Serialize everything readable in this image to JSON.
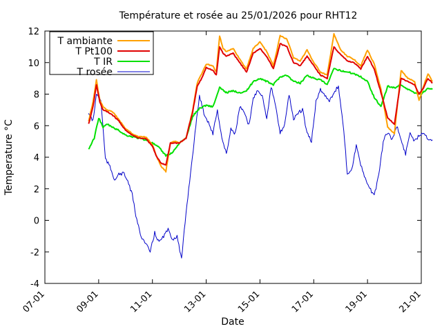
{
  "chart_data": {
    "type": "line",
    "title": "Température et rosée au 25/01/2026 pour RHT12",
    "xlabel": "Date",
    "ylabel": "Temperature °C",
    "xlim": [
      "2026-01-07",
      "2026-01-21"
    ],
    "ylim": [
      -4,
      12
    ],
    "x_ticks": [
      "07-01",
      "09-01",
      "11-01",
      "13-01",
      "15-01",
      "17-01",
      "19-01",
      "21-01"
    ],
    "y_ticks": [
      "-4",
      "-2",
      "0",
      "2",
      "4",
      "6",
      "8",
      "10",
      "12"
    ],
    "grid": false,
    "legend_position": "top-left",
    "series": [
      {
        "name": "T ambiante",
        "color": "#ffa000",
        "x": [
          "2026-01-08T15:00",
          "2026-01-08T19:00",
          "2026-01-08T22:00",
          "2026-01-09T01:00",
          "2026-01-09T04:00",
          "2026-01-09T07:00",
          "2026-01-09T12:00",
          "2026-01-09T18:00",
          "2026-01-10T00:00",
          "2026-01-10T06:00",
          "2026-01-10T12:00",
          "2026-01-10T18:00",
          "2026-01-11T00:00",
          "2026-01-11T04:00",
          "2026-01-11T08:00",
          "2026-01-11T12:00",
          "2026-01-11T16:00",
          "2026-01-11T20:00",
          "2026-01-12T00:00",
          "2026-01-12T06:00",
          "2026-01-12T12:00",
          "2026-01-12T16:00",
          "2026-01-12T20:00",
          "2026-01-13T00:00",
          "2026-01-13T06:00",
          "2026-01-13T09:00",
          "2026-01-13T12:00",
          "2026-01-13T15:00",
          "2026-01-13T18:00",
          "2026-01-14T00:00",
          "2026-01-14T06:00",
          "2026-01-14T12:00",
          "2026-01-14T18:00",
          "2026-01-15T00:00",
          "2026-01-15T06:00",
          "2026-01-15T12:00",
          "2026-01-15T18:00",
          "2026-01-16T00:00",
          "2026-01-16T06:00",
          "2026-01-16T12:00",
          "2026-01-16T18:00",
          "2026-01-17T00:00",
          "2026-01-17T06:00",
          "2026-01-17T12:00",
          "2026-01-17T18:00",
          "2026-01-18T00:00",
          "2026-01-18T06:00",
          "2026-01-18T12:00",
          "2026-01-18T18:00",
          "2026-01-19T00:00",
          "2026-01-19T06:00",
          "2026-01-19T12:00",
          "2026-01-19T18:00",
          "2026-01-20T00:00",
          "2026-01-20T06:00",
          "2026-01-20T12:00",
          "2026-01-20T18:00",
          "2026-01-20T22:00"
        ],
        "y": [
          6.3,
          7.5,
          8.9,
          7.6,
          7.2,
          7.0,
          6.9,
          6.4,
          5.8,
          5.5,
          5.3,
          5.3,
          4.8,
          4.0,
          3.4,
          3.1,
          4.9,
          5.0,
          4.9,
          5.2,
          7.0,
          8.7,
          9.3,
          9.9,
          9.8,
          9.4,
          11.7,
          10.9,
          10.7,
          10.9,
          10.2,
          9.6,
          10.9,
          11.3,
          10.7,
          9.8,
          11.7,
          11.5,
          10.3,
          10.1,
          10.8,
          10.0,
          9.4,
          9.2,
          11.8,
          10.8,
          10.4,
          10.2,
          9.8,
          10.8,
          9.9,
          8.3,
          5.9,
          5.5,
          9.5,
          9.0,
          8.8,
          7.6
        ],
        "extra_x": [
          "2026-01-21T02:00",
          "2026-01-21T06:00",
          "2026-01-21T10:00"
        ],
        "extra_y": [
          8.5,
          9.3,
          8.8
        ]
      },
      {
        "name": "T Pt100",
        "color": "#e00000",
        "x": [
          "2026-01-08T15:00",
          "2026-01-08T19:00",
          "2026-01-08T22:00",
          "2026-01-09T01:00",
          "2026-01-09T04:00",
          "2026-01-09T07:00",
          "2026-01-09T12:00",
          "2026-01-09T18:00",
          "2026-01-10T00:00",
          "2026-01-10T06:00",
          "2026-01-10T12:00",
          "2026-01-10T18:00",
          "2026-01-11T00:00",
          "2026-01-11T04:00",
          "2026-01-11T08:00",
          "2026-01-11T12:00",
          "2026-01-11T16:00",
          "2026-01-11T20:00",
          "2026-01-12T00:00",
          "2026-01-12T06:00",
          "2026-01-12T12:00",
          "2026-01-12T16:00",
          "2026-01-12T20:00",
          "2026-01-13T00:00",
          "2026-01-13T06:00",
          "2026-01-13T09:00",
          "2026-01-13T12:00",
          "2026-01-13T15:00",
          "2026-01-13T18:00",
          "2026-01-14T00:00",
          "2026-01-14T06:00",
          "2026-01-14T12:00",
          "2026-01-14T18:00",
          "2026-01-15T00:00",
          "2026-01-15T06:00",
          "2026-01-15T12:00",
          "2026-01-15T18:00",
          "2026-01-16T00:00",
          "2026-01-16T06:00",
          "2026-01-16T12:00",
          "2026-01-16T18:00",
          "2026-01-17T00:00",
          "2026-01-17T06:00",
          "2026-01-17T12:00",
          "2026-01-17T18:00",
          "2026-01-18T00:00",
          "2026-01-18T06:00",
          "2026-01-18T12:00",
          "2026-01-18T18:00",
          "2026-01-19T00:00",
          "2026-01-19T06:00",
          "2026-01-19T12:00",
          "2026-01-19T18:00",
          "2026-01-20T00:00",
          "2026-01-20T06:00",
          "2026-01-20T12:00",
          "2026-01-20T18:00",
          "2026-01-20T22:00"
        ],
        "y": [
          6.1,
          7.2,
          8.6,
          7.5,
          7.0,
          6.9,
          6.7,
          6.3,
          5.7,
          5.4,
          5.2,
          5.2,
          4.7,
          4.0,
          3.6,
          3.5,
          4.9,
          4.9,
          4.9,
          5.2,
          6.9,
          8.5,
          9.0,
          9.7,
          9.5,
          9.2,
          11.0,
          10.6,
          10.4,
          10.6,
          10.0,
          9.4,
          10.6,
          10.9,
          10.4,
          9.6,
          11.2,
          11.0,
          10.0,
          9.8,
          10.4,
          9.8,
          9.2,
          9.0,
          11.0,
          10.5,
          10.1,
          10.0,
          9.6,
          10.4,
          9.6,
          8.1,
          6.5,
          6.1,
          9.0,
          8.8,
          8.6,
          8.0
        ],
        "extra_x": [
          "2026-01-21T02:00",
          "2026-01-21T06:00",
          "2026-01-21T10:00"
        ],
        "extra_y": [
          8.4,
          9.0,
          8.7
        ]
      },
      {
        "name": "T IR",
        "color": "#00e000",
        "x": [
          "2026-01-08T15:00",
          "2026-01-08T20:00",
          "2026-01-09T00:00",
          "2026-01-09T04:00",
          "2026-01-09T08:00",
          "2026-01-09T12:00",
          "2026-01-09T18:00",
          "2026-01-10T00:00",
          "2026-01-10T06:00",
          "2026-01-10T12:00",
          "2026-01-10T18:00",
          "2026-01-11T00:00",
          "2026-01-11T06:00",
          "2026-01-11T12:00",
          "2026-01-11T18:00",
          "2026-01-12T00:00",
          "2026-01-12T06:00",
          "2026-01-12T12:00",
          "2026-01-12T18:00",
          "2026-01-13T00:00",
          "2026-01-13T06:00",
          "2026-01-13T12:00",
          "2026-01-13T18:00",
          "2026-01-14T00:00",
          "2026-01-14T06:00",
          "2026-01-14T12:00",
          "2026-01-14T18:00",
          "2026-01-15T00:00",
          "2026-01-15T06:00",
          "2026-01-15T12:00",
          "2026-01-15T18:00",
          "2026-01-16T00:00",
          "2026-01-16T06:00",
          "2026-01-16T12:00",
          "2026-01-16T18:00",
          "2026-01-17T00:00",
          "2026-01-17T06:00",
          "2026-01-17T12:00",
          "2026-01-17T18:00",
          "2026-01-18T00:00",
          "2026-01-18T06:00",
          "2026-01-18T12:00",
          "2026-01-18T18:00",
          "2026-01-19T00:00",
          "2026-01-19T06:00",
          "2026-01-19T12:00",
          "2026-01-19T18:00",
          "2026-01-20T00:00",
          "2026-01-20T06:00",
          "2026-01-20T12:00",
          "2026-01-20T18:00",
          "2026-01-21T00:00",
          "2026-01-21T06:00",
          "2026-01-21T10:00"
        ],
        "y": [
          4.5,
          5.2,
          6.5,
          5.9,
          6.1,
          5.9,
          5.7,
          5.4,
          5.3,
          5.2,
          5.1,
          4.9,
          4.6,
          4.1,
          4.3,
          4.9,
          5.2,
          6.6,
          7.1,
          7.3,
          7.2,
          8.4,
          8.1,
          8.2,
          8.1,
          8.2,
          8.8,
          9.0,
          8.8,
          8.6,
          9.1,
          9.2,
          8.8,
          8.7,
          9.2,
          9.0,
          8.9,
          8.6,
          9.6,
          9.5,
          9.4,
          9.3,
          9.1,
          8.8,
          7.8,
          7.2,
          8.5,
          8.4,
          8.6,
          8.3,
          8.1,
          8.0,
          8.4,
          8.3
        ]
      },
      {
        "name": "T rosée",
        "color": "#0000c8",
        "x": [
          "2026-01-08T15:00",
          "2026-01-08T19:00",
          "2026-01-08T22:00",
          "2026-01-09T02:00",
          "2026-01-09T06:00",
          "2026-01-09T10:00",
          "2026-01-09T14:00",
          "2026-01-09T18:00",
          "2026-01-09T22:00",
          "2026-01-10T02:00",
          "2026-01-10T06:00",
          "2026-01-10T10:00",
          "2026-01-10T14:00",
          "2026-01-10T18:00",
          "2026-01-10T22:00",
          "2026-01-11T02:00",
          "2026-01-11T06:00",
          "2026-01-11T10:00",
          "2026-01-11T14:00",
          "2026-01-11T18:00",
          "2026-01-11T22:00",
          "2026-01-12T02:00",
          "2026-01-12T06:00",
          "2026-01-12T10:00",
          "2026-01-12T14:00",
          "2026-01-12T18:00",
          "2026-01-12T22:00",
          "2026-01-13T02:00",
          "2026-01-13T06:00",
          "2026-01-13T10:00",
          "2026-01-13T14:00",
          "2026-01-13T18:00",
          "2026-01-13T22:00",
          "2026-01-14T02:00",
          "2026-01-14T06:00",
          "2026-01-14T10:00",
          "2026-01-14T14:00",
          "2026-01-14T18:00",
          "2026-01-14T22:00",
          "2026-01-15T02:00",
          "2026-01-15T06:00",
          "2026-01-15T10:00",
          "2026-01-15T14:00",
          "2026-01-15T18:00",
          "2026-01-15T22:00",
          "2026-01-16T02:00",
          "2026-01-16T06:00",
          "2026-01-16T10:00",
          "2026-01-16T14:00",
          "2026-01-16T18:00",
          "2026-01-16T22:00",
          "2026-01-17T02:00",
          "2026-01-17T06:00",
          "2026-01-17T10:00",
          "2026-01-17T14:00",
          "2026-01-17T18:00",
          "2026-01-17T22:00",
          "2026-01-18T02:00",
          "2026-01-18T06:00",
          "2026-01-18T10:00",
          "2026-01-18T14:00",
          "2026-01-18T18:00",
          "2026-01-18T22:00",
          "2026-01-19T02:00",
          "2026-01-19T06:00",
          "2026-01-19T10:00",
          "2026-01-19T14:00",
          "2026-01-19T18:00",
          "2026-01-19T22:00",
          "2026-01-20T02:00",
          "2026-01-20T06:00",
          "2026-01-20T10:00",
          "2026-01-20T14:00",
          "2026-01-20T18:00",
          "2026-01-20T22:00",
          "2026-01-21T02:00",
          "2026-01-21T06:00",
          "2026-01-21T10:00"
        ],
        "y": [
          6.8,
          6.3,
          8.0,
          7.6,
          3.9,
          3.4,
          2.6,
          2.9,
          3.0,
          2.5,
          1.6,
          0.0,
          -1.0,
          -1.5,
          -2.0,
          -0.8,
          -1.4,
          -1.0,
          -0.6,
          -1.2,
          -1.0,
          -2.5,
          0.5,
          3.0,
          5.5,
          7.9,
          6.8,
          6.2,
          5.5,
          7.0,
          5.2,
          4.2,
          5.8,
          5.5,
          7.2,
          6.8,
          6.0,
          7.7,
          8.3,
          7.9,
          6.5,
          8.5,
          7.2,
          5.5,
          6.1,
          8.0,
          6.4,
          6.8,
          7.0,
          5.5,
          5.0,
          7.5,
          8.3,
          7.9,
          7.6,
          8.1,
          8.5,
          6.2,
          3.0,
          3.2,
          4.8,
          3.5,
          2.6,
          2.0,
          1.6,
          2.8,
          5.0,
          5.6,
          5.1,
          6.0,
          5.1,
          4.2,
          5.6,
          5.0,
          5.4,
          5.6,
          5.2,
          5.1
        ]
      }
    ]
  }
}
